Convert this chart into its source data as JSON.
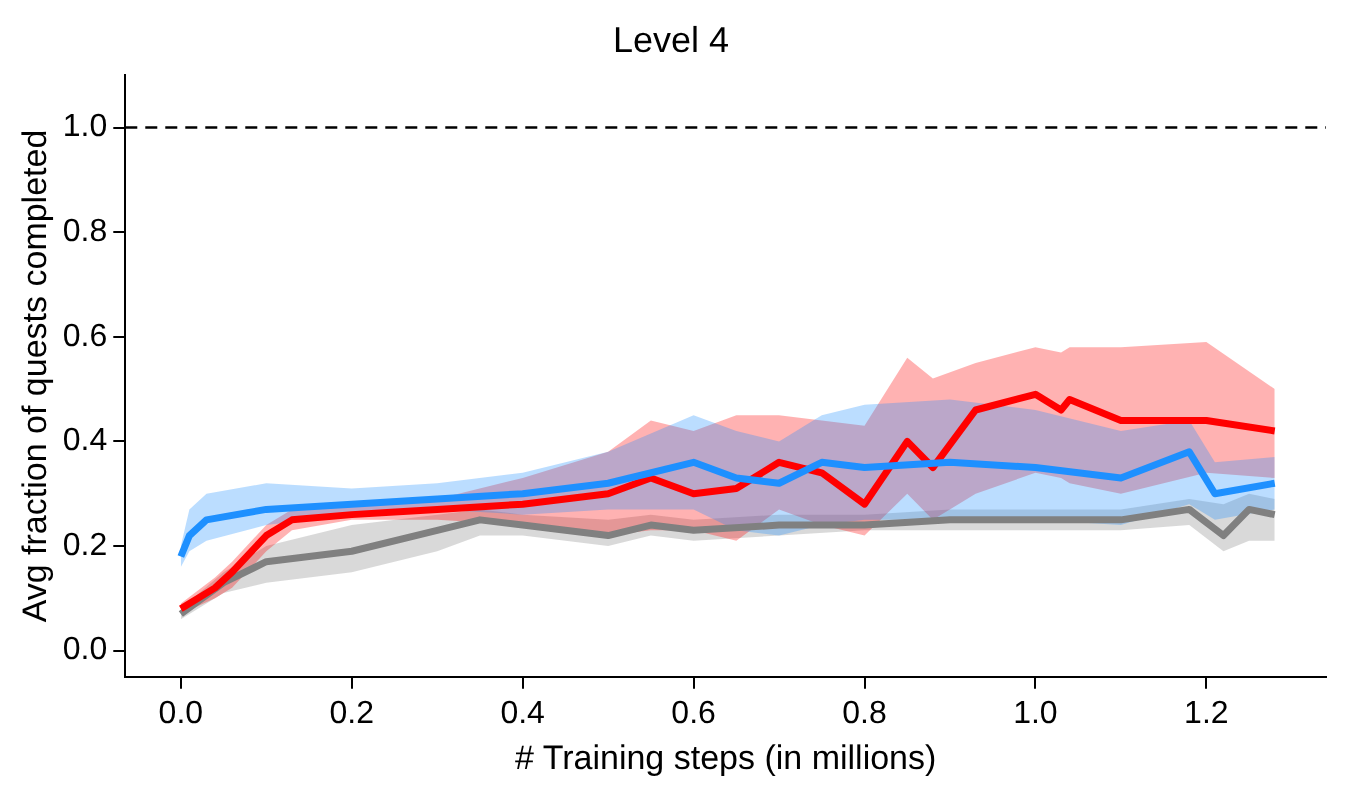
{
  "chart_data": {
    "type": "line",
    "title": "Level 4",
    "xlabel": "# Training steps (in millions)",
    "ylabel": "Avg fraction of quests completed",
    "xlim": [
      -0.065,
      1.34
    ],
    "ylim": [
      -0.05,
      1.1
    ],
    "xticks": [
      {
        "value": 0,
        "label": "0.0"
      },
      {
        "value": 0.2,
        "label": "0.2"
      },
      {
        "value": 0.4,
        "label": "0.4"
      },
      {
        "value": 0.6,
        "label": "0.6"
      },
      {
        "value": 0.8,
        "label": "0.8"
      },
      {
        "value": 1,
        "label": "1.0"
      },
      {
        "value": 1.2,
        "label": "1.2"
      }
    ],
    "yticks": [
      {
        "value": 0,
        "label": "0.0"
      },
      {
        "value": 0.2,
        "label": "0.2"
      },
      {
        "value": 0.4,
        "label": "0.4"
      },
      {
        "value": 0.6,
        "label": "0.6"
      },
      {
        "value": 0.8,
        "label": "0.8"
      },
      {
        "value": 1,
        "label": "1.0"
      }
    ],
    "grid": false,
    "legend": false,
    "marker": "none",
    "line_style": "solid",
    "ref_lines": [
      {
        "axis": "y",
        "value": 1.0,
        "label": null,
        "color": "#000000",
        "line_style": "dashed"
      }
    ],
    "series": [
      {
        "color": "#1e90ff",
        "x": [
          0,
          0.01,
          0.03,
          0.1,
          0.2,
          0.3,
          0.4,
          0.5,
          0.6,
          0.65,
          0.7,
          0.75,
          0.8,
          0.9,
          1.0,
          1.1,
          1.18,
          1.21,
          1.28
        ],
        "values": [
          0.18,
          0.22,
          0.25,
          0.27,
          0.28,
          0.29,
          0.3,
          0.32,
          0.36,
          0.33,
          0.32,
          0.36,
          0.35,
          0.36,
          0.35,
          0.33,
          0.38,
          0.3,
          0.32
        ],
        "lower": [
          0.16,
          0.19,
          0.21,
          0.24,
          0.26,
          0.27,
          0.26,
          0.27,
          0.27,
          0.23,
          0.22,
          0.24,
          0.25,
          0.25,
          0.25,
          0.24,
          0.28,
          0.25,
          0.27
        ],
        "upper": [
          0.2,
          0.27,
          0.3,
          0.32,
          0.31,
          0.32,
          0.34,
          0.38,
          0.45,
          0.42,
          0.4,
          0.45,
          0.47,
          0.48,
          0.46,
          0.42,
          0.44,
          0.36,
          0.37
        ]
      },
      {
        "color": "#ff0000",
        "x": [
          0,
          0.04,
          0.06,
          0.1,
          0.13,
          0.2,
          0.3,
          0.4,
          0.5,
          0.55,
          0.6,
          0.65,
          0.7,
          0.75,
          0.8,
          0.85,
          0.88,
          0.93,
          1.0,
          1.03,
          1.04,
          1.1,
          1.2,
          1.28
        ],
        "values": [
          0.08,
          0.12,
          0.15,
          0.22,
          0.25,
          0.26,
          0.27,
          0.28,
          0.3,
          0.33,
          0.3,
          0.31,
          0.36,
          0.34,
          0.28,
          0.4,
          0.35,
          0.46,
          0.49,
          0.46,
          0.48,
          0.44,
          0.44,
          0.42
        ],
        "lower": [
          0.07,
          0.1,
          0.12,
          0.19,
          0.23,
          0.25,
          0.25,
          0.24,
          0.22,
          0.23,
          0.23,
          0.21,
          0.27,
          0.24,
          0.22,
          0.3,
          0.25,
          0.3,
          0.34,
          0.33,
          0.32,
          0.3,
          0.34,
          0.33
        ],
        "upper": [
          0.09,
          0.14,
          0.17,
          0.24,
          0.27,
          0.28,
          0.29,
          0.33,
          0.38,
          0.44,
          0.42,
          0.45,
          0.45,
          0.44,
          0.43,
          0.56,
          0.52,
          0.55,
          0.58,
          0.57,
          0.58,
          0.58,
          0.59,
          0.5
        ]
      },
      {
        "color": "#808080",
        "x": [
          0,
          0.05,
          0.1,
          0.2,
          0.3,
          0.35,
          0.4,
          0.5,
          0.55,
          0.6,
          0.7,
          0.8,
          0.9,
          1.0,
          1.1,
          1.18,
          1.22,
          1.25,
          1.28
        ],
        "values": [
          0.07,
          0.13,
          0.17,
          0.19,
          0.23,
          0.25,
          0.24,
          0.22,
          0.24,
          0.23,
          0.24,
          0.24,
          0.25,
          0.25,
          0.25,
          0.27,
          0.22,
          0.27,
          0.26
        ],
        "lower": [
          0.06,
          0.11,
          0.13,
          0.15,
          0.19,
          0.22,
          0.22,
          0.2,
          0.22,
          0.21,
          0.22,
          0.23,
          0.23,
          0.23,
          0.23,
          0.24,
          0.19,
          0.21,
          0.21
        ],
        "upper": [
          0.08,
          0.15,
          0.2,
          0.24,
          0.26,
          0.27,
          0.26,
          0.25,
          0.26,
          0.25,
          0.26,
          0.26,
          0.27,
          0.27,
          0.27,
          0.29,
          0.28,
          0.3,
          0.29
        ]
      }
    ]
  }
}
